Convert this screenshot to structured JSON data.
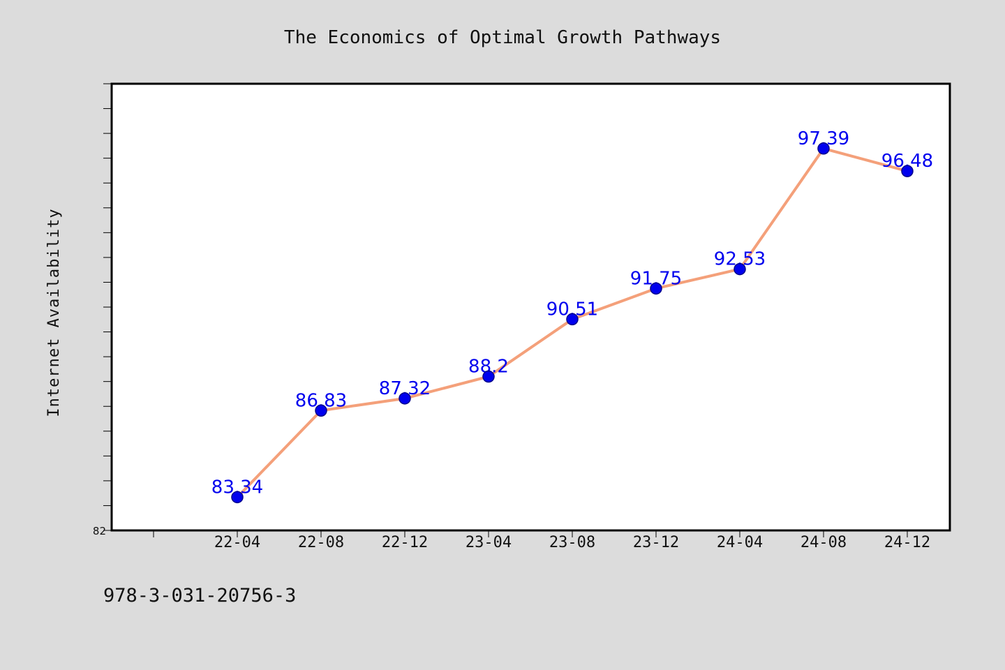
{
  "chart_data": {
    "type": "line",
    "title": "The Economics of Optimal Growth Pathways",
    "xlabel": "",
    "ylabel": "Internet Availability",
    "categories": [
      "22-04",
      "22-08",
      "22-12",
      "23-04",
      "23-08",
      "23-12",
      "24-04",
      "24-08",
      "24-12"
    ],
    "series": [
      {
        "values": [
          83.34,
          86.83,
          87.32,
          88.2,
          90.51,
          91.75,
          92.53,
          97.39,
          96.48
        ]
      }
    ],
    "data_labels": [
      "83.34",
      "86.83",
      "87.32",
      "88.2",
      "90.51",
      "91.75",
      "92.53",
      "97.39",
      "96.48"
    ],
    "ylim": [
      82,
      100
    ],
    "ytick_labels": [
      "82"
    ],
    "grid": false,
    "legend": "none",
    "colors": {
      "line": "#f4a07a",
      "marker": "#0000ee",
      "marker_edge": "#00008b",
      "data_label": "#0000ee",
      "plot_bg": "#ffffff",
      "page_bg": "#dcdcdc"
    }
  },
  "footnote": "978-3-031-20756-3"
}
